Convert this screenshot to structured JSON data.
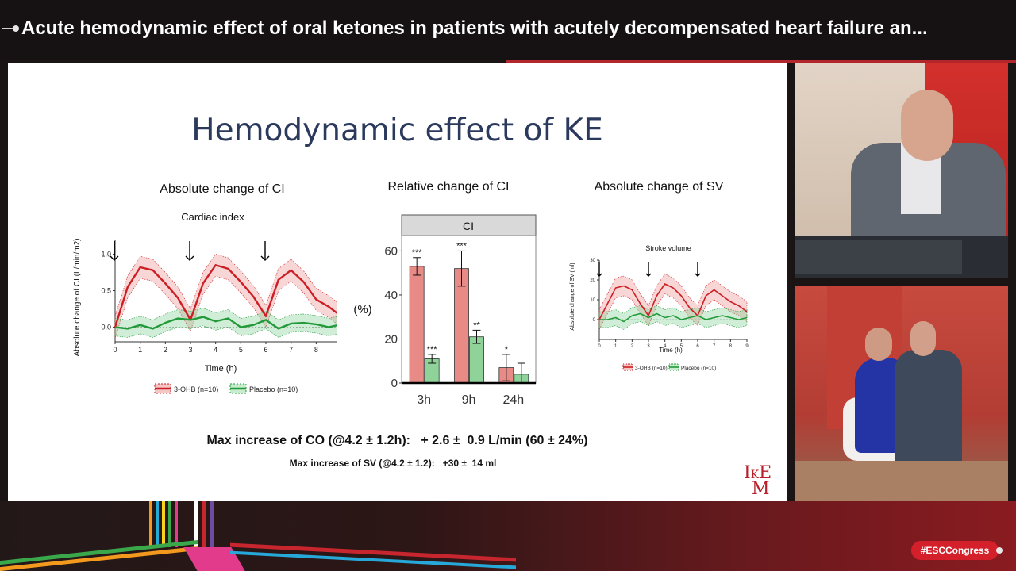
{
  "header": {
    "title": "Acute hemodynamic effect of oral ketones in patients with acutely decompensated heart failure an..."
  },
  "slide": {
    "title": "Hemodynamic effect of KE",
    "panel1_title": "Absolute change of CI",
    "panel2_title": "Relative change of CI",
    "panel3_title": "Absolute change of SV",
    "co_line": "Max increase of CO (@4.2 ± 1.2h):   + 2.6 ±  0.9 L/min (60 ± 24%)",
    "sv_line": "Max increase of SV (@4.2 ± 1.2):   +30 ±  14 ml",
    "logo": "IKEM"
  },
  "chart_data": [
    {
      "type": "line",
      "title": "Cardiac index",
      "xlabel": "Time (h)",
      "ylabel": "Absolute change of CI (L/min/m2)",
      "xlim": [
        0,
        9
      ],
      "ylim": [
        -0.2,
        1.2
      ],
      "x_ticks": [
        0,
        1,
        2,
        3,
        4,
        5,
        6,
        7,
        8,
        9
      ],
      "y_ticks": [
        "1.0",
        "0.5",
        "0.0"
      ],
      "dose_arrows_h": [
        0,
        3,
        6
      ],
      "legend": [
        "3-OHB (n=10)",
        "Placebo (n=10)"
      ],
      "colors": {
        "ohb": "#cc1f25",
        "placebo": "#229a3a"
      },
      "series": [
        {
          "name": "3-OHB (n=10)",
          "x": [
            0,
            0.5,
            1,
            1.5,
            2,
            2.5,
            3,
            3.5,
            4,
            4.5,
            5,
            5.5,
            6,
            6.5,
            7,
            7.5,
            8,
            8.5,
            9
          ],
          "y": [
            0,
            0.55,
            0.82,
            0.78,
            0.6,
            0.4,
            0.1,
            0.6,
            0.85,
            0.8,
            0.62,
            0.42,
            0.15,
            0.65,
            0.78,
            0.62,
            0.38,
            0.28,
            0.15
          ]
        },
        {
          "name": "Placebo (n=10)",
          "x": [
            0,
            0.5,
            1,
            1.5,
            2,
            2.5,
            3,
            3.5,
            4,
            4.5,
            5,
            5.5,
            6,
            6.5,
            7,
            7.5,
            8,
            8.5,
            9
          ],
          "y": [
            0,
            -0.02,
            0.03,
            -0.02,
            0.06,
            0.12,
            0.1,
            0.14,
            0.08,
            0.12,
            0.0,
            0.03,
            0.1,
            -0.02,
            0.05,
            0.06,
            0.04,
            0.0,
            0.04
          ]
        }
      ]
    },
    {
      "type": "bar",
      "title": "CI",
      "ylabel": "(%)",
      "categories": [
        "3h",
        "9h",
        "24h"
      ],
      "y_ticks": [
        0,
        20,
        40,
        60
      ],
      "ylim": [
        0,
        67
      ],
      "colors": {
        "ohb": "#e88a85",
        "placebo": "#8fd39a"
      },
      "series": [
        {
          "values": [
            53,
            52,
            7
          ],
          "errors": [
            4,
            8,
            6
          ],
          "sig": [
            "***",
            "***",
            "*"
          ]
        },
        {
          "values": [
            11,
            21,
            4
          ],
          "errors": [
            2,
            3,
            5
          ],
          "sig": [
            "***",
            "**",
            ""
          ]
        }
      ]
    },
    {
      "type": "line",
      "title": "Stroke volume",
      "xlabel": "Time (h)",
      "ylabel": "Absolute change of SV (ml)",
      "xlim": [
        0,
        9
      ],
      "ylim": [
        -10,
        30
      ],
      "x_ticks": [
        0,
        1,
        2,
        3,
        4,
        5,
        6,
        7,
        8,
        9
      ],
      "y_ticks": [
        30,
        20,
        10,
        0
      ],
      "dose_arrows_h": [
        0,
        3,
        6
      ],
      "legend": [
        "3-OHB (n=10)",
        "Placebo (n=10)"
      ],
      "series": [
        {
          "name": "3-OHB (n=10)",
          "x": [
            0,
            0.5,
            1,
            1.5,
            2,
            2.5,
            3,
            3.5,
            4,
            4.5,
            5,
            5.5,
            6,
            6.5,
            7,
            7.5,
            8,
            8.5,
            9
          ],
          "y": [
            0,
            8,
            16,
            17,
            15,
            8,
            2,
            12,
            18,
            16,
            12,
            6,
            2,
            12,
            15,
            12,
            9,
            7,
            4
          ]
        },
        {
          "name": "Placebo (n=10)",
          "x": [
            0,
            0.5,
            1,
            1.5,
            2,
            2.5,
            3,
            3.5,
            4,
            4.5,
            5,
            5.5,
            6,
            6.5,
            7,
            7.5,
            8,
            8.5,
            9
          ],
          "y": [
            0,
            0,
            1,
            -1,
            2,
            3,
            1,
            3,
            1,
            2,
            0,
            1,
            2,
            0,
            1,
            2,
            1,
            0,
            1
          ]
        }
      ]
    }
  ],
  "footer": {
    "hashtag": "#ESCCongress"
  }
}
